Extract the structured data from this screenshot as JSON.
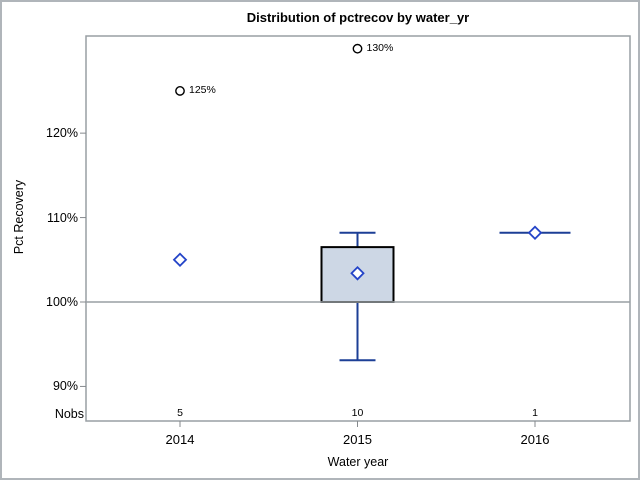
{
  "window": {
    "background": "#ffffff",
    "border_color": "#b0b5ba"
  },
  "chart_data": {
    "type": "boxplot",
    "title": "Distribution of pctrecov by water_yr",
    "xlabel": "Water year",
    "ylabel": "Pct Recovery",
    "nobs_label": "Nobs",
    "y_axis": {
      "ticks": [
        {
          "value": 120,
          "label": "120%"
        },
        {
          "value": 110,
          "label": "110%"
        },
        {
          "value": 100,
          "label": "100%"
        },
        {
          "value": 90,
          "label": "90%"
        }
      ],
      "range_shown": [
        86,
        131.5
      ]
    },
    "reference_line_value": 100,
    "grid": "off",
    "legend": "none",
    "groups": [
      {
        "label": "2014",
        "nobs": "5",
        "mean": 105,
        "outliers": [
          {
            "value": 125,
            "label": "125%"
          }
        ]
      },
      {
        "label": "2015",
        "nobs": "10",
        "whisker_low": 93.1,
        "q1": 100,
        "mean": 103.4,
        "q3": 106.5,
        "whisker_high": 108.2,
        "outliers": [
          {
            "value": 130,
            "label": "130%"
          }
        ]
      },
      {
        "label": "2016",
        "nobs": "1",
        "median": 108.2,
        "mean": 108.2,
        "outliers": []
      }
    ],
    "colors": {
      "frame": "#999fa4",
      "reference_line": "#999fa4",
      "tick": "#85898d",
      "box_fill": "#cdd7e5",
      "box_stroke": "#000000",
      "whisker": "#1c3f96",
      "mean_marker": "#2444c8",
      "outlier_marker": "#000000"
    }
  }
}
